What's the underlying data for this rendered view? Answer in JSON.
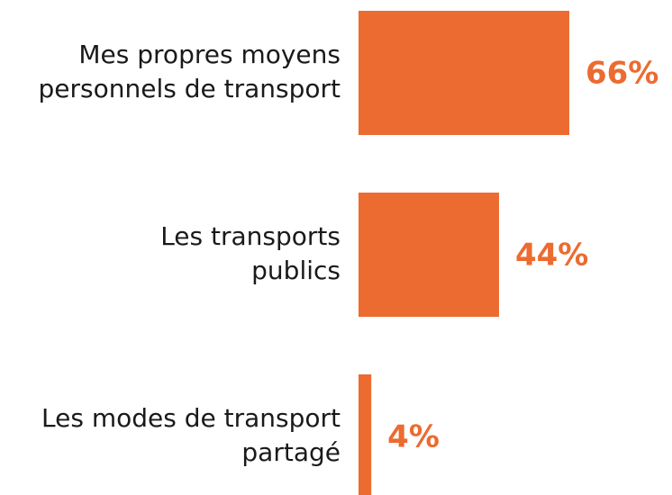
{
  "chart_data": {
    "type": "bar",
    "orientation": "horizontal",
    "categories": [
      [
        "Mes propres moyens",
        "personnels de transport"
      ],
      [
        "Les transports",
        "publics"
      ],
      [
        "Les modes de transport",
        "partagé"
      ]
    ],
    "values": [
      66,
      44,
      4
    ],
    "value_labels": [
      "66%",
      "44%",
      "4%"
    ],
    "color": "#ec6b30"
  }
}
